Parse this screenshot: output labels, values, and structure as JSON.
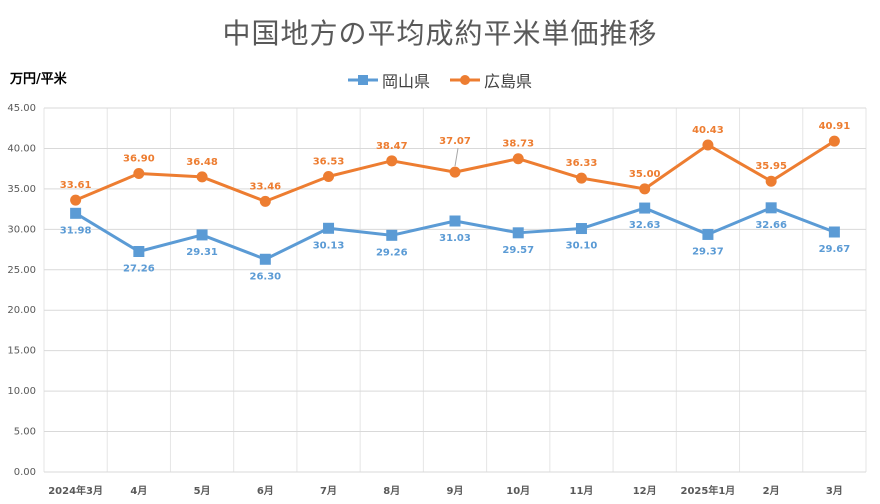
{
  "chart_data": {
    "type": "line",
    "title": "中国地方の平均成約平米単価推移",
    "ylabel": "万円/平米",
    "xlabel": "",
    "categories": [
      "2024年3月",
      "4月",
      "5月",
      "6月",
      "7月",
      "8月",
      "9月",
      "10月",
      "11月",
      "12月",
      "2025年1月",
      "2月",
      "3月"
    ],
    "ylim": [
      0,
      45
    ],
    "yticks": [
      "0.00",
      "5.00",
      "10.00",
      "15.00",
      "20.00",
      "25.00",
      "30.00",
      "35.00",
      "40.00",
      "45.00"
    ],
    "grid": true,
    "legend_position": "top-center",
    "series": [
      {
        "name": "岡山県",
        "color": "#5b9bd5",
        "marker": "square",
        "values": [
          31.98,
          27.26,
          29.31,
          26.3,
          30.13,
          29.26,
          31.03,
          29.57,
          30.1,
          32.63,
          29.37,
          32.66,
          29.67
        ],
        "labels": [
          "31.98",
          "27.26",
          "29.31",
          "26.30",
          "30.13",
          "29.26",
          "31.03",
          "29.57",
          "30.10",
          "32.63",
          "29.37",
          "32.66",
          "29.67"
        ]
      },
      {
        "name": "広島県",
        "color": "#ed7d31",
        "marker": "circle",
        "values": [
          33.61,
          36.9,
          36.48,
          33.46,
          36.53,
          38.47,
          37.07,
          38.73,
          36.33,
          35.0,
          40.43,
          35.95,
          40.91
        ],
        "labels": [
          "33.61",
          "36.90",
          "36.48",
          "33.46",
          "36.53",
          "38.47",
          "37.07",
          "38.73",
          "36.33",
          "35.00",
          "40.43",
          "35.95",
          "40.91"
        ]
      }
    ]
  }
}
